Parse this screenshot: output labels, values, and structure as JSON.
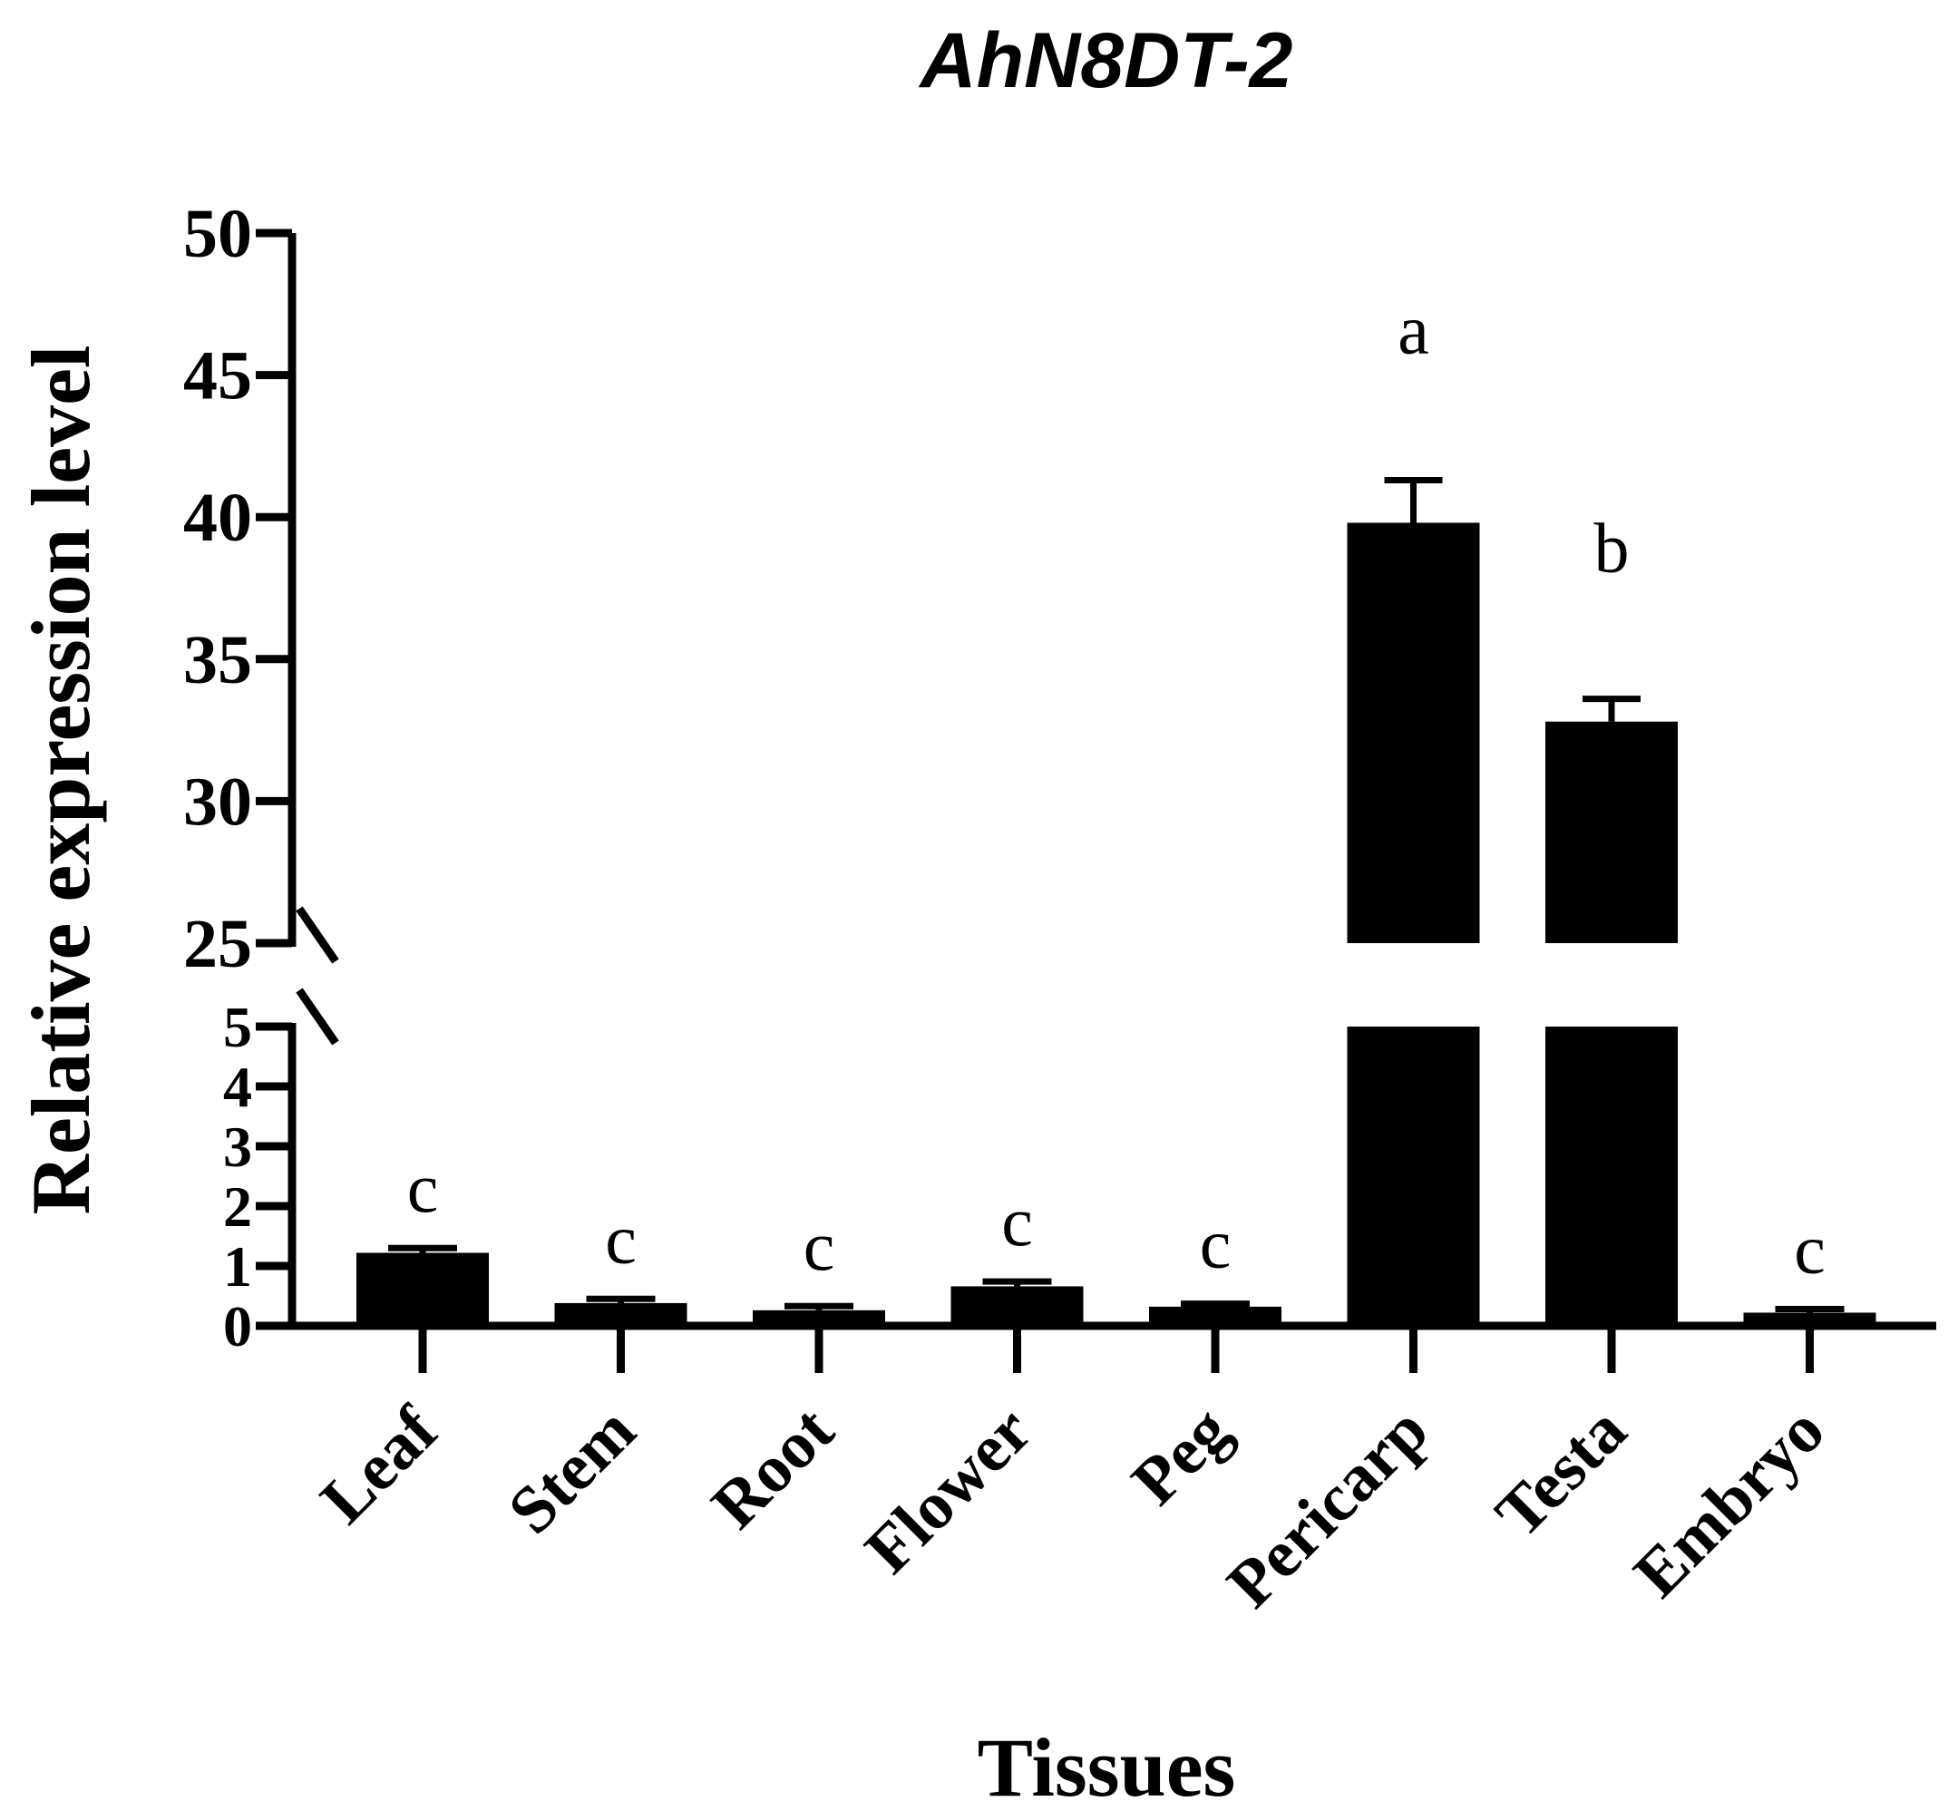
{
  "chart_data": {
    "type": "bar",
    "title": "AhN8DT-2",
    "xlabel": "Tissues",
    "ylabel": "Relative expression level",
    "categories": [
      "Leaf",
      "Stem",
      "Root",
      "Flower",
      "Peg",
      "Pericarp",
      "Testa",
      "Embryo"
    ],
    "series": [
      {
        "values": [
          1.22,
          0.38,
          0.26,
          0.66,
          0.32,
          39.8,
          32.8,
          0.22
        ],
        "error": [
          0.08,
          0.07,
          0.07,
          0.08,
          0.05,
          1.5,
          0.8,
          0.06
        ]
      }
    ],
    "significance_letters": [
      "c",
      "c",
      "c",
      "c",
      "c",
      "a",
      "b",
      "c"
    ],
    "y_axis_break": {
      "lower_range": [
        0,
        5
      ],
      "upper_range": [
        25,
        50
      ]
    },
    "y_ticks_lower": [
      "0",
      "1",
      "2",
      "3",
      "4",
      "5"
    ],
    "y_ticks_upper": [
      "25",
      "30",
      "35",
      "40",
      "45",
      "50"
    ],
    "grid": false,
    "legend": "none",
    "bar_color": "#000000"
  }
}
